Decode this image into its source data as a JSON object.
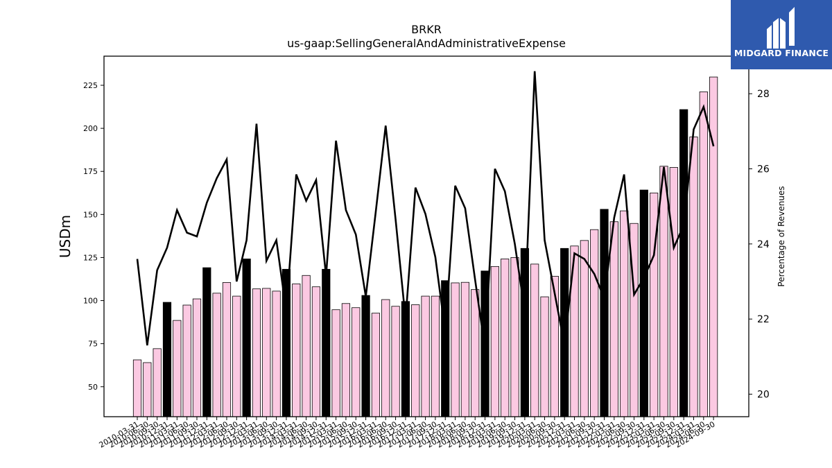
{
  "logo": {
    "text": "MIDGARD FINANCE",
    "background": "#2f5aae"
  },
  "chart_data": {
    "type": "bar",
    "title": "BRKR",
    "subtitle": "us-gaap:SellingGeneralAndAdministrativeExpense",
    "ylabel": "USDm",
    "y2label": "Percentage of Revenues",
    "ylim": [
      32.6,
      241.9
    ],
    "y2lim": [
      19.4,
      29.0
    ],
    "yticks": [
      50,
      75,
      100,
      125,
      150,
      175,
      200,
      225
    ],
    "y2ticks": [
      20,
      22,
      24,
      26,
      28
    ],
    "colors": {
      "quarter_bar": "#fbc9e2",
      "annual_bar": "#000000",
      "line": "#000000"
    },
    "categories": [
      "2010-03-31",
      "2010-06-30",
      "2010-09-30",
      "2010-12-31",
      "2011-03-31",
      "2011-06-30",
      "2011-09-30",
      "2011-12-31",
      "2012-03-31",
      "2012-06-30",
      "2012-09-30",
      "2012-12-31",
      "2013-03-31",
      "2013-06-30",
      "2013-09-30",
      "2013-12-31",
      "2014-03-31",
      "2014-06-30",
      "2014-09-30",
      "2014-12-31",
      "2015-03-31",
      "2015-06-30",
      "2015-09-30",
      "2015-12-31",
      "2016-03-31",
      "2016-06-30",
      "2016-09-30",
      "2016-12-31",
      "2017-03-31",
      "2017-06-30",
      "2017-09-30",
      "2017-12-31",
      "2018-03-31",
      "2018-06-30",
      "2018-09-30",
      "2018-12-31",
      "2019-03-31",
      "2019-06-30",
      "2019-09-30",
      "2019-12-31",
      "2020-03-31",
      "2020-06-30",
      "2020-09-30",
      "2020-12-31",
      "2021-03-31",
      "2021-06-30",
      "2021-09-30",
      "2021-12-31",
      "2022-03-31",
      "2022-06-30",
      "2022-09-30",
      "2022-12-31",
      "2023-03-31",
      "2023-06-30",
      "2023-09-30",
      "2023-12-31",
      "2024-03-31",
      "2024-06-30",
      "2024-09-30"
    ],
    "series": [
      {
        "type": "bar",
        "axis": "left",
        "values": [
          65.6,
          64.0,
          72.1,
          99.0,
          88.5,
          97.4,
          101.0,
          119.1,
          104.3,
          110.5,
          102.6,
          124.2,
          106.8,
          107.1,
          105.5,
          118.2,
          109.7,
          114.6,
          108.0,
          118.2,
          94.7,
          98.3,
          95.9,
          103.0,
          92.7,
          100.6,
          96.7,
          99.5,
          97.6,
          102.6,
          102.6,
          111.6,
          110.3,
          110.6,
          106.4,
          117.2,
          119.8,
          124.2,
          125.0,
          130.3,
          121.2,
          102.2,
          114.1,
          130.3,
          131.7,
          134.9,
          141.2,
          153.0,
          145.8,
          152.1,
          144.8,
          164.2,
          162.5,
          178.0,
          177.3,
          210.9,
          195.0,
          221.2,
          229.8
        ],
        "annual": [
          false,
          false,
          false,
          true,
          false,
          false,
          false,
          true,
          false,
          false,
          false,
          true,
          false,
          false,
          false,
          true,
          false,
          false,
          false,
          true,
          false,
          false,
          false,
          true,
          false,
          false,
          false,
          true,
          false,
          false,
          false,
          true,
          false,
          false,
          false,
          true,
          false,
          false,
          false,
          true,
          false,
          false,
          false,
          true,
          false,
          false,
          false,
          true,
          false,
          false,
          false,
          true,
          false,
          false,
          false,
          true,
          false,
          false,
          false
        ]
      },
      {
        "type": "line",
        "axis": "right",
        "values": [
          23.6,
          21.3,
          23.3,
          23.9,
          24.9,
          24.3,
          24.2,
          25.1,
          25.75,
          26.25,
          23.0,
          24.1,
          27.2,
          23.55,
          24.1,
          22.2,
          25.85,
          25.15,
          25.7,
          23.15,
          26.75,
          24.9,
          24.25,
          22.6,
          24.85,
          27.15,
          24.65,
          22.0,
          25.5,
          24.8,
          23.65,
          21.65,
          25.55,
          24.95,
          23.05,
          21.2,
          26.0,
          25.4,
          24.0,
          22.2,
          28.6,
          24.1,
          22.7,
          21.3,
          23.75,
          23.6,
          23.2,
          22.55,
          24.7,
          25.85,
          22.65,
          23.1,
          23.7,
          26.05,
          23.9,
          24.5,
          27.05,
          27.65,
          26.6
        ]
      }
    ]
  }
}
